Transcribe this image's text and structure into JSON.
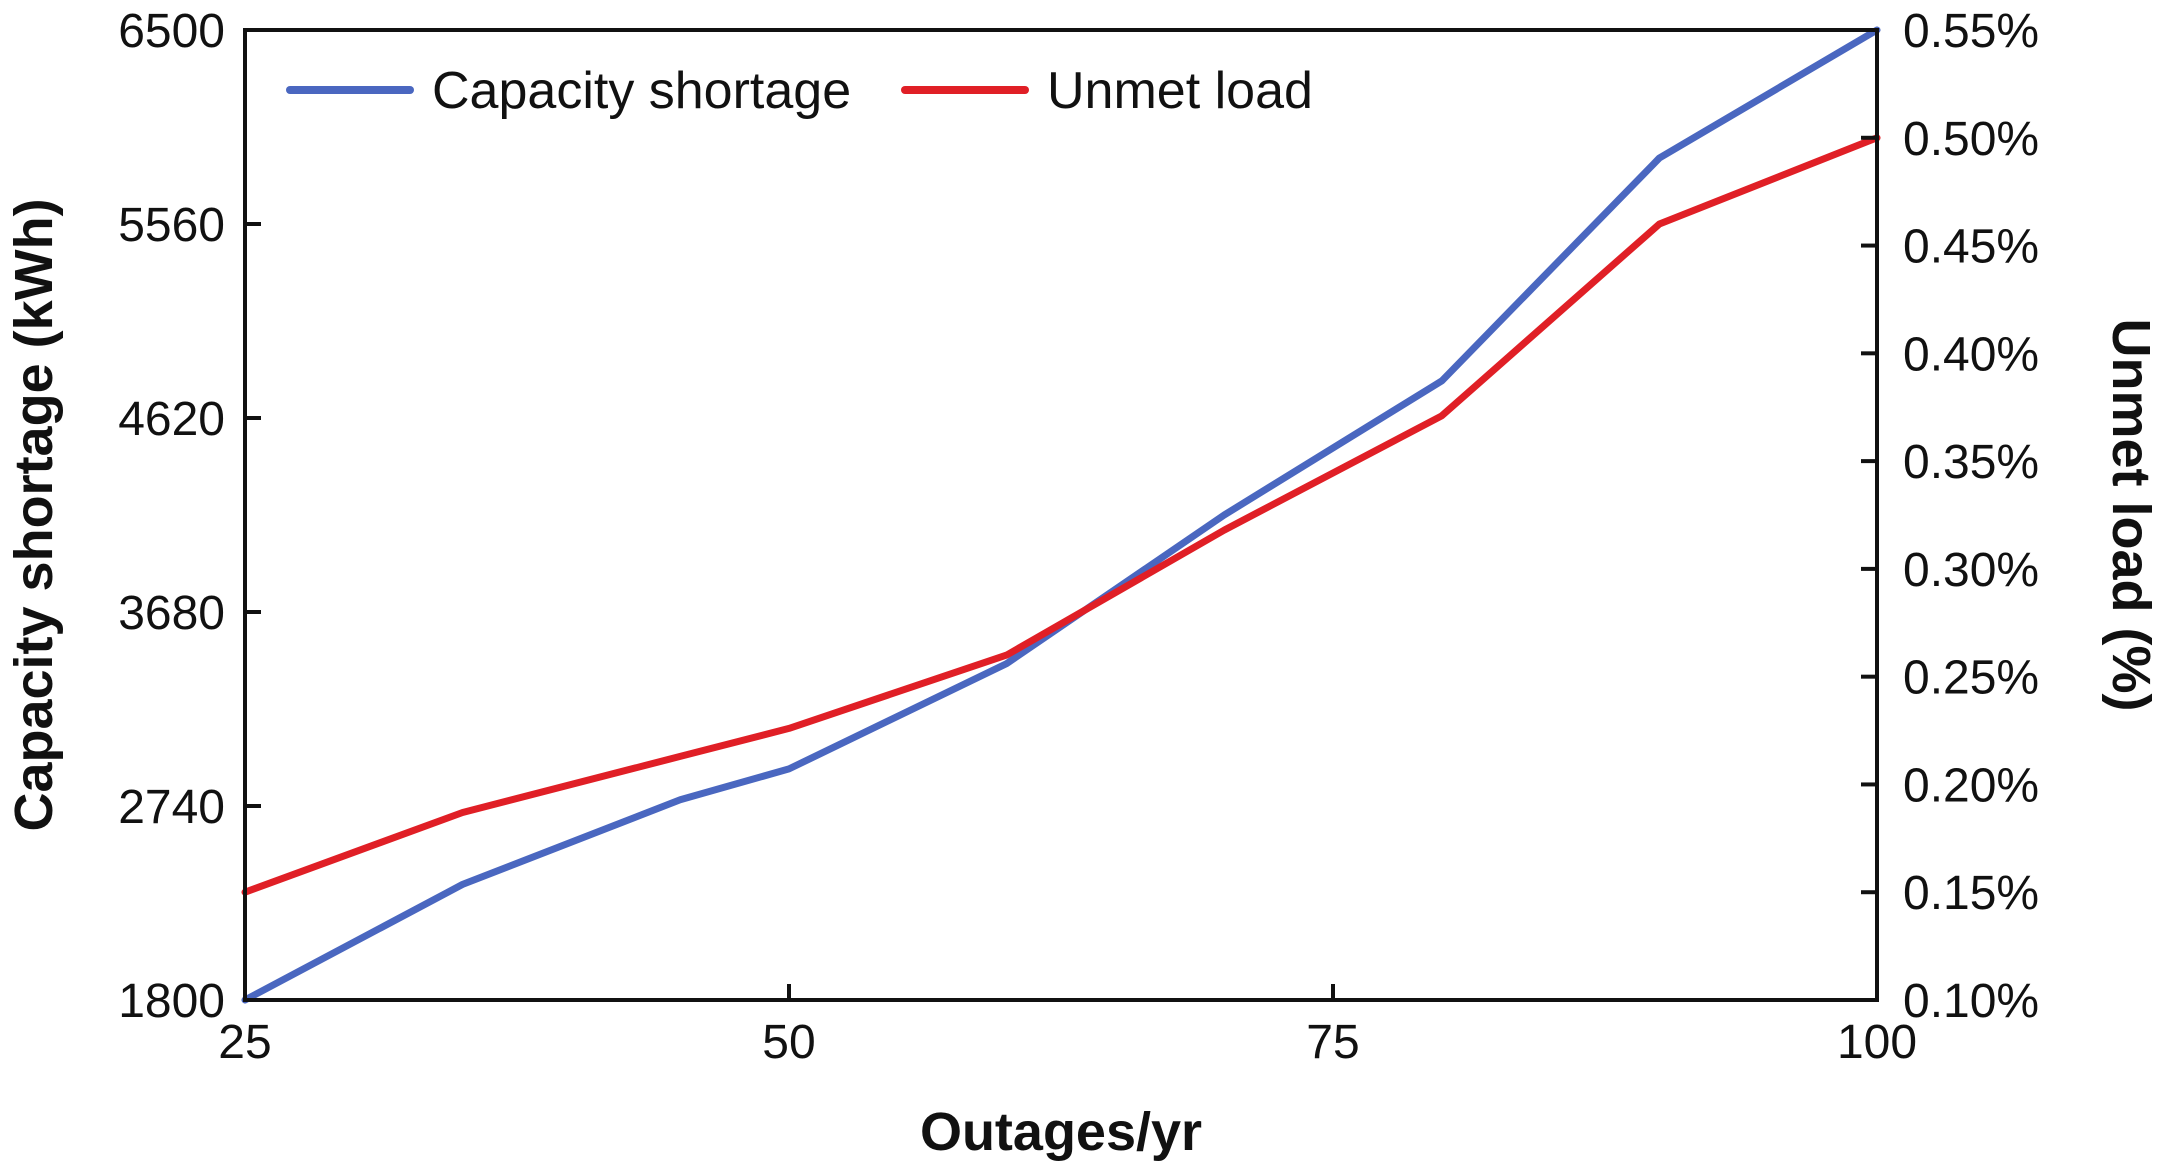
{
  "chart_data": {
    "type": "line",
    "x": [
      25,
      35,
      45,
      50,
      60,
      70,
      80,
      90,
      100
    ],
    "series": [
      {
        "name": "Capacity shortage",
        "axis": "left",
        "color": "#4a67c0",
        "values": [
          1800,
          2360,
          2770,
          2920,
          3430,
          4150,
          4800,
          5880,
          6500
        ]
      },
      {
        "name": "Unmet load",
        "axis": "right",
        "color": "#e01f26",
        "values": [
          0.15,
          0.187,
          0.213,
          0.226,
          0.26,
          0.318,
          0.371,
          0.46,
          0.5
        ]
      }
    ],
    "xlabel": "Outages/yr",
    "ylabel": "Capacity shortage (kWh)",
    "y2label": "Unmet load (%)",
    "xlim": [
      25,
      100
    ],
    "ylim": [
      1800,
      6500
    ],
    "y2lim": [
      0.1,
      0.55
    ],
    "xticks": [
      "25",
      "50",
      "75",
      "100"
    ],
    "yticks": [
      "1800",
      "2740",
      "3680",
      "4620",
      "5560",
      "6500"
    ],
    "y2ticks": [
      "0.10%",
      "0.15%",
      "0.20%",
      "0.25%",
      "0.30%",
      "0.35%",
      "0.40%",
      "0.45%",
      "0.50%",
      "0.55%"
    ],
    "legend_position": "top-left",
    "grid": false
  }
}
